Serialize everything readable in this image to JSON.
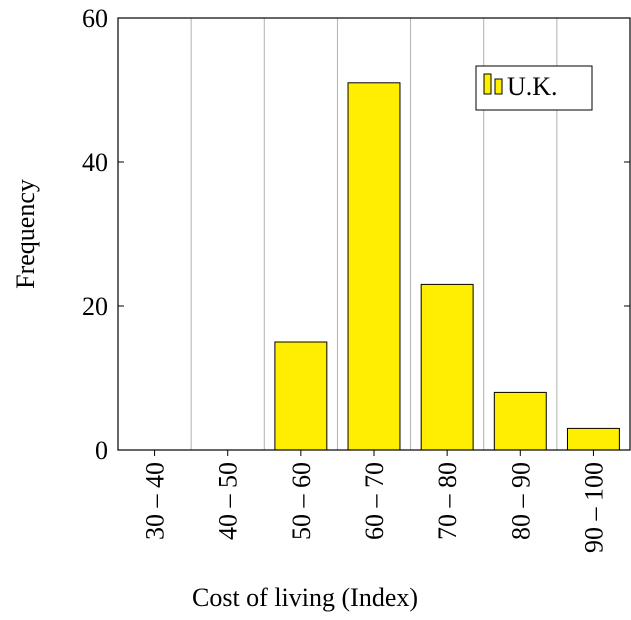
{
  "chart_data": {
    "type": "bar",
    "x_label": "Cost of living (Index)",
    "y_label": "Frequency",
    "categories": [
      "30 – 40",
      "40 – 50",
      "50 – 60",
      "60 – 70",
      "70 – 80",
      "80 – 90",
      "90 – 100"
    ],
    "series": [
      {
        "name": "U.K.",
        "color": "#ffee00",
        "values": [
          0,
          0,
          15,
          51,
          23,
          8,
          3
        ]
      }
    ],
    "ylim": [
      0,
      60
    ],
    "yticks": [
      0,
      20,
      40,
      60
    ],
    "grid": true,
    "legend": "upper right"
  }
}
